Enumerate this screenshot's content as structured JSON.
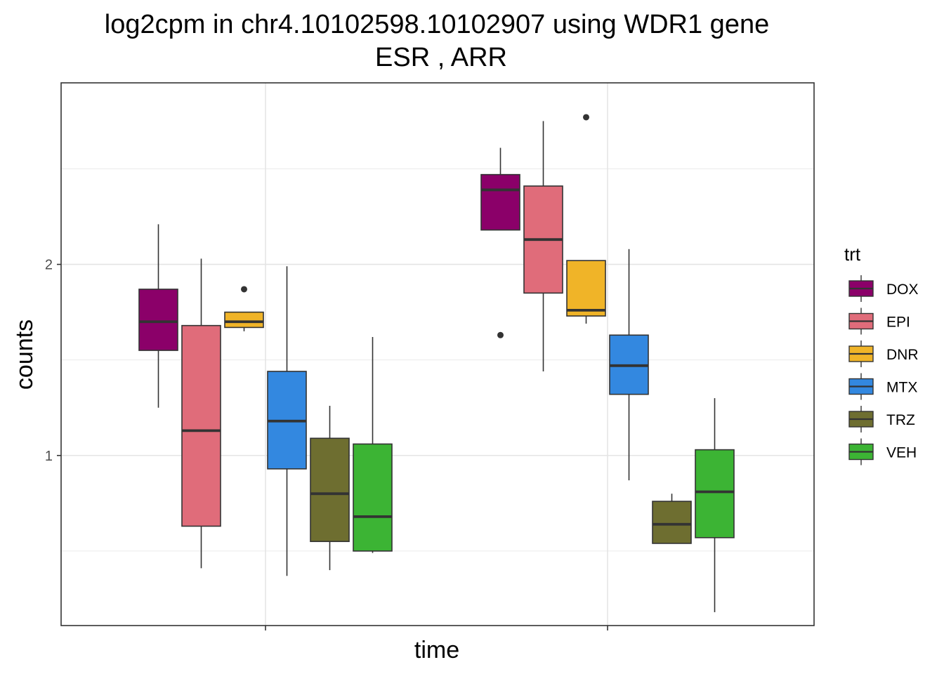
{
  "chart_data": {
    "type": "boxplot",
    "title_line1": "log2cpm in  chr4.10102598.10102907  using  WDR1  gene",
    "title_line2": "ESR ,  ARR",
    "xlabel": "time",
    "ylabel": "counts",
    "ylim": [
      0.11,
      2.95
    ],
    "y_ticks": [
      1,
      2
    ],
    "y_tick_labels": [
      "1",
      "2"
    ],
    "grid": true,
    "legend_title": "trt",
    "legend_position": "right",
    "groups": [
      "",
      ""
    ],
    "treatments": [
      {
        "name": "DOX",
        "color": "#8B0069"
      },
      {
        "name": "EPI",
        "color": "#E06C7A"
      },
      {
        "name": "DNR",
        "color": "#F0B428"
      },
      {
        "name": "MTX",
        "color": "#3388E0"
      },
      {
        "name": "TRZ",
        "color": "#6E6E30"
      },
      {
        "name": "VEH",
        "color": "#3CB434"
      }
    ],
    "boxes": [
      {
        "group": 0,
        "trt": "DOX",
        "whisker_low": 1.25,
        "q1": 1.55,
        "median": 1.7,
        "q3": 1.87,
        "whisker_high": 2.21,
        "outliers": []
      },
      {
        "group": 0,
        "trt": "EPI",
        "whisker_low": 0.41,
        "q1": 0.63,
        "median": 1.13,
        "q3": 1.68,
        "whisker_high": 2.03,
        "outliers": []
      },
      {
        "group": 0,
        "trt": "DNR",
        "whisker_low": 1.65,
        "q1": 1.67,
        "median": 1.7,
        "q3": 1.75,
        "whisker_high": 1.75,
        "outliers": [
          1.87
        ]
      },
      {
        "group": 0,
        "trt": "MTX",
        "whisker_low": 0.37,
        "q1": 0.93,
        "median": 1.18,
        "q3": 1.44,
        "whisker_high": 1.99,
        "outliers": []
      },
      {
        "group": 0,
        "trt": "TRZ",
        "whisker_low": 0.4,
        "q1": 0.55,
        "median": 0.8,
        "q3": 1.09,
        "whisker_high": 1.26,
        "outliers": []
      },
      {
        "group": 0,
        "trt": "VEH",
        "whisker_low": 0.49,
        "q1": 0.5,
        "median": 0.68,
        "q3": 1.06,
        "whisker_high": 1.62,
        "outliers": []
      },
      {
        "group": 1,
        "trt": "DOX",
        "whisker_low": 2.18,
        "q1": 2.18,
        "median": 2.39,
        "q3": 2.47,
        "whisker_high": 2.61,
        "outliers": [
          1.63
        ]
      },
      {
        "group": 1,
        "trt": "EPI",
        "whisker_low": 1.44,
        "q1": 1.85,
        "median": 2.13,
        "q3": 2.41,
        "whisker_high": 2.75,
        "outliers": []
      },
      {
        "group": 1,
        "trt": "DNR",
        "whisker_low": 1.69,
        "q1": 1.73,
        "median": 1.76,
        "q3": 2.02,
        "whisker_high": 2.02,
        "outliers": [
          2.77
        ]
      },
      {
        "group": 1,
        "trt": "MTX",
        "whisker_low": 0.87,
        "q1": 1.32,
        "median": 1.47,
        "q3": 1.63,
        "whisker_high": 2.08,
        "outliers": []
      },
      {
        "group": 1,
        "trt": "TRZ",
        "whisker_low": 0.54,
        "q1": 0.54,
        "median": 0.64,
        "q3": 0.76,
        "whisker_high": 0.8,
        "outliers": []
      },
      {
        "group": 1,
        "trt": "VEH",
        "whisker_low": 0.18,
        "q1": 0.57,
        "median": 0.81,
        "q3": 1.03,
        "whisker_high": 1.3,
        "outliers": []
      }
    ]
  }
}
